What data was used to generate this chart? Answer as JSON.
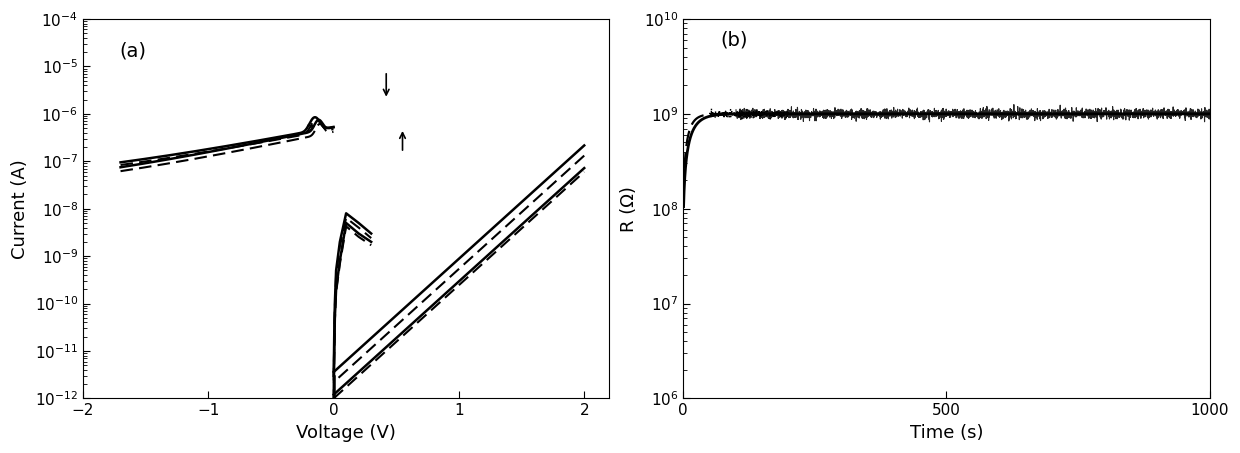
{
  "fig_width": 12.4,
  "fig_height": 4.53,
  "dpi": 100,
  "background_color": "#ffffff",
  "panel_a": {
    "label": "(a)",
    "xlabel": "Voltage (V)",
    "ylabel": "Current (A)",
    "xlim": [
      -2.0,
      2.2
    ],
    "ylim_log": [
      -12,
      -4
    ],
    "xlabel_fontsize": 13,
    "ylabel_fontsize": 13,
    "label_fontsize": 14,
    "tick_fontsize": 11
  },
  "panel_b": {
    "label": "(b)",
    "xlabel": "Time (s)",
    "ylabel": "R (Ω)",
    "xlim": [
      0,
      1000
    ],
    "ylim_log": [
      6,
      10
    ],
    "xlabel_fontsize": 13,
    "ylabel_fontsize": 13,
    "label_fontsize": 14,
    "tick_fontsize": 11
  }
}
